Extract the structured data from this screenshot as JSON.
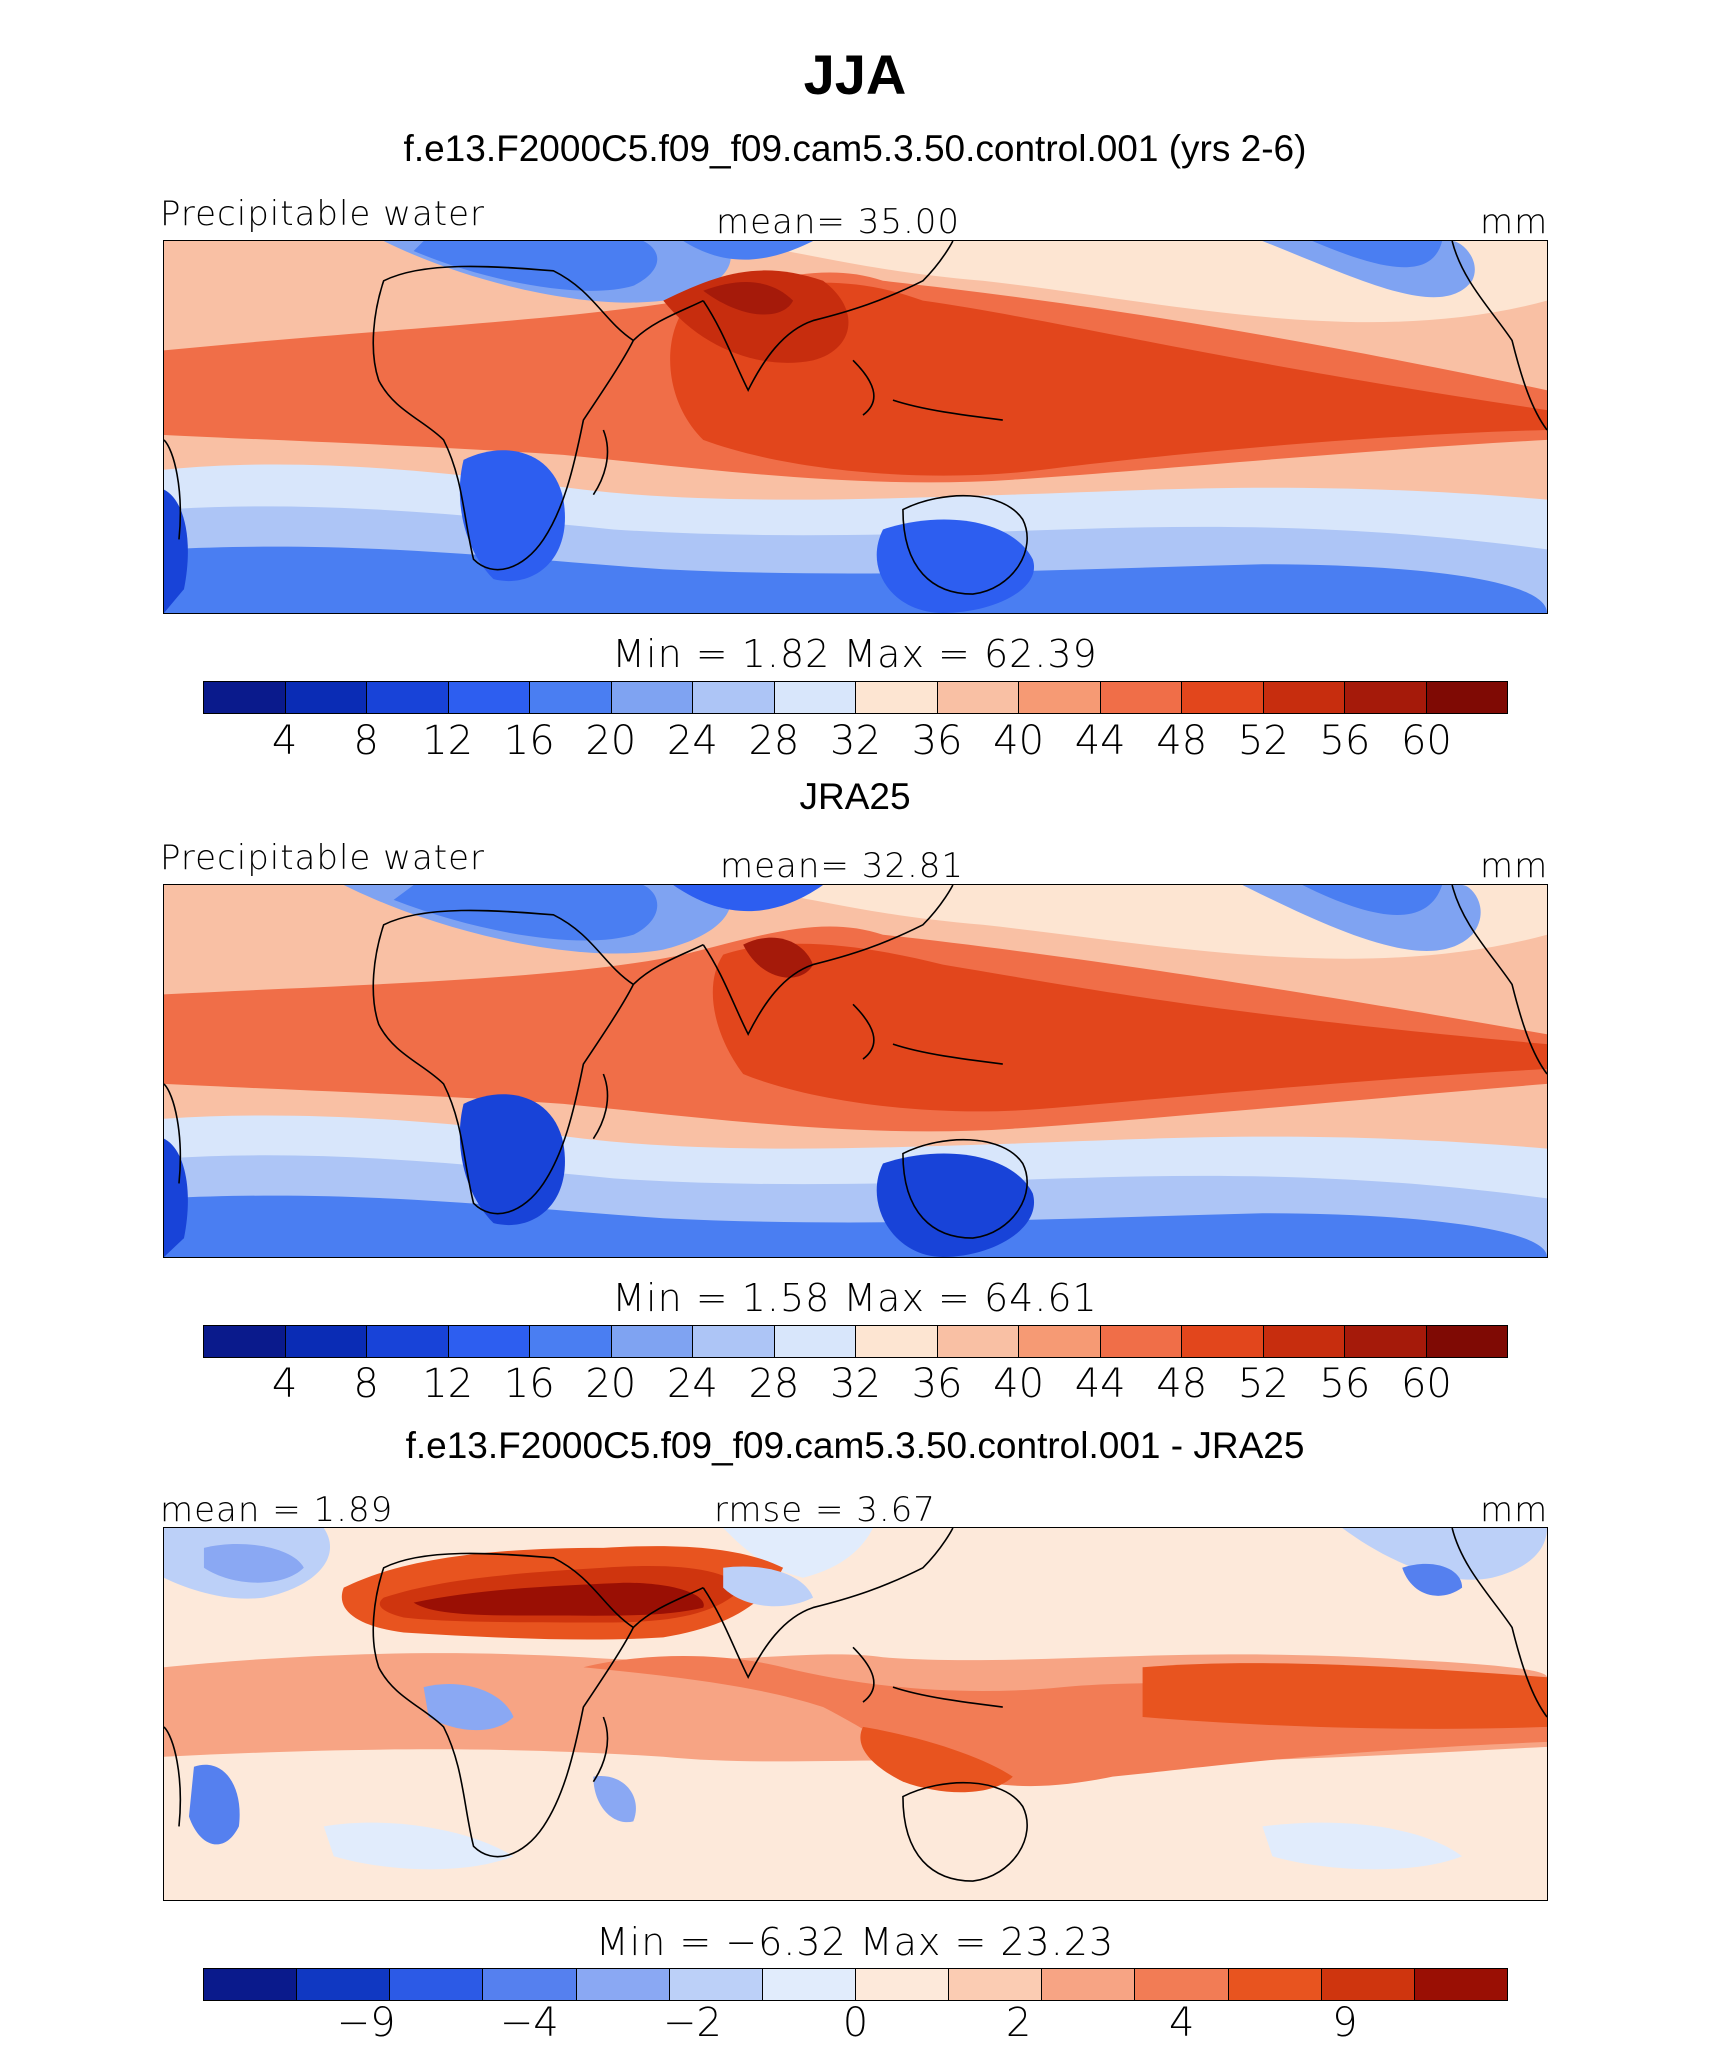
{
  "figure": {
    "title": "JJA"
  },
  "colors": {
    "abs": [
      "#0a1a8c",
      "#0a2cb5",
      "#1843d8",
      "#2d5ef0",
      "#4a7ef2",
      "#7fa3f2",
      "#adc5f6",
      "#d8e6fb",
      "#fde5d2",
      "#f9c0a4",
      "#f69a74",
      "#f06e48",
      "#e2461c",
      "#c72d0e",
      "#a51a0a",
      "#7f0a04"
    ],
    "diff": [
      "#0a1a8c",
      "#1038c2",
      "#2c5ae6",
      "#5580ef",
      "#8aa8f3",
      "#bcd0f8",
      "#e1ecfc",
      "#fde9da",
      "#fbccb3",
      "#f7a484",
      "#f27c55",
      "#e8541f",
      "#cf350e",
      "#9a0f04"
    ]
  },
  "panels": [
    {
      "title": "f.e13.F2000C5.f09_f09.cam5.3.50.control.001 (yrs 2-6)",
      "left_label": "Precipitable water",
      "center_label": "mean=   35.00",
      "right_label": "mm",
      "minmax": "Min =     1.82  Max =    62.39",
      "ticks": [
        "4",
        "8",
        "12",
        "16",
        "20",
        "24",
        "28",
        "32",
        "36",
        "40",
        "44",
        "48",
        "52",
        "56",
        "60"
      ]
    },
    {
      "title": "JRA25",
      "left_label": "Precipitable water",
      "center_label": "mean=   32.81",
      "right_label": "mm",
      "minmax": "Min =     1.58  Max =    64.61",
      "ticks": [
        "4",
        "8",
        "12",
        "16",
        "20",
        "24",
        "28",
        "32",
        "36",
        "40",
        "44",
        "48",
        "52",
        "56",
        "60"
      ]
    },
    {
      "title": "f.e13.F2000C5.f09_f09.cam5.3.50.control.001 - JRA25",
      "left_label": "mean =    1.89",
      "center_label": "rmse =    3.67",
      "right_label": "mm",
      "minmax": "Min =   −6.32  Max =    23.23",
      "ticks": [
        "−9",
        "−4",
        "−2",
        "0",
        "2",
        "4",
        "9"
      ]
    }
  ]
}
